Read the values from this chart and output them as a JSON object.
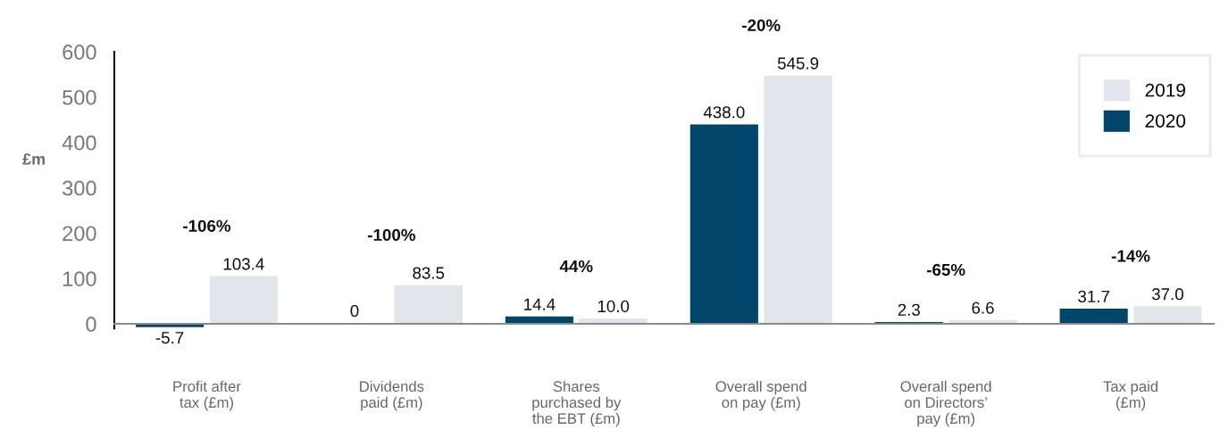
{
  "chart_data": {
    "type": "bar",
    "ylabel": "£m",
    "categories": [
      "Profit after\ntax (£m)",
      "Dividends\npaid (£m)",
      "Shares\npurchased by\nthe EBT (£m)",
      "Overall spend\non pay (£m)",
      "Overall spend\non Directors’\npay (£m)",
      "Tax paid\n(£m)"
    ],
    "series": [
      {
        "name": "2020",
        "color": "#00466b",
        "values": [
          -5.7,
          0,
          14.4,
          438.0,
          2.3,
          31.7
        ],
        "value_labels": [
          "-5.7",
          "0",
          "14.4",
          "438.0",
          "2.3",
          "31.7"
        ]
      },
      {
        "name": "2019",
        "color": "#e1e5ec",
        "values": [
          103.4,
          83.5,
          10.0,
          545.9,
          6.6,
          37.0
        ],
        "value_labels": [
          "103.4",
          "83.5",
          "10.0",
          "545.9",
          "6.6",
          "37.0"
        ]
      }
    ],
    "ylim": [
      -10,
      600
    ],
    "yticks": [
      0,
      100,
      200,
      300,
      400,
      500,
      600
    ],
    "legend": "top right",
    "annotations": [
      "-106%",
      "-100%",
      "44%",
      "-20%",
      "-65%",
      "-14%"
    ]
  }
}
